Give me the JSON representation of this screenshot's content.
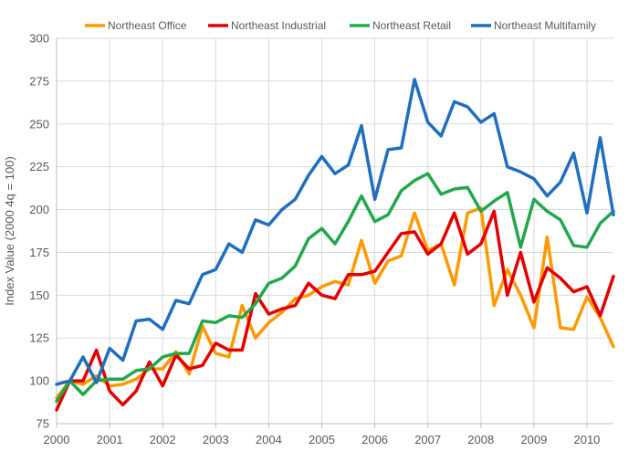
{
  "chart_data": {
    "type": "line",
    "title": "",
    "xlabel": "",
    "ylabel": "Index Value (2000 4q = 100)",
    "xlim": [
      2000,
      2010.5
    ],
    "ylim": [
      75,
      300
    ],
    "x_ticks": [
      "2000",
      "2001",
      "2002",
      "2003",
      "2004",
      "2005",
      "2006",
      "2007",
      "2008",
      "2009",
      "2010"
    ],
    "y_ticks": [
      75,
      100,
      125,
      150,
      175,
      200,
      225,
      250,
      275,
      300
    ],
    "grid": true,
    "legend_position": "top",
    "x": [
      2000.0,
      2000.25,
      2000.5,
      2000.75,
      2001.0,
      2001.25,
      2001.5,
      2001.75,
      2002.0,
      2002.25,
      2002.5,
      2002.75,
      2003.0,
      2003.25,
      2003.5,
      2003.75,
      2004.0,
      2004.25,
      2004.5,
      2004.75,
      2005.0,
      2005.25,
      2005.5,
      2005.75,
      2006.0,
      2006.25,
      2006.5,
      2006.75,
      2007.0,
      2007.25,
      2007.5,
      2007.75,
      2008.0,
      2008.25,
      2008.5,
      2008.75,
      2009.0,
      2009.25,
      2009.5,
      2009.75,
      2010.0,
      2010.25,
      2010.5
    ],
    "series": [
      {
        "name": "Northeast Office",
        "color": "#FF9900",
        "values": [
          90,
          100,
          98,
          103,
          97,
          98,
          101,
          107,
          107,
          117,
          104,
          132,
          116,
          114,
          144,
          125,
          134,
          140,
          148,
          150,
          155,
          158,
          156,
          182,
          157,
          170,
          173,
          198,
          176,
          180,
          156,
          198,
          201,
          144,
          165,
          150,
          131,
          184,
          131,
          130,
          149,
          137,
          120
        ]
      },
      {
        "name": "Northeast Industrial",
        "color": "#E50000",
        "values": [
          83,
          100,
          100,
          118,
          94,
          86,
          94,
          111,
          97,
          115,
          107,
          109,
          122,
          118,
          118,
          151,
          139,
          142,
          144,
          157,
          150,
          148,
          162,
          162,
          164,
          175,
          186,
          187,
          174,
          180,
          198,
          174,
          180,
          199,
          150,
          175,
          146,
          166,
          160,
          152,
          155,
          138,
          161
        ]
      },
      {
        "name": "Northeast Retail",
        "color": "#22A84A",
        "values": [
          88,
          100,
          92,
          100,
          101,
          101,
          106,
          107,
          114,
          116,
          116,
          135,
          134,
          138,
          137,
          145,
          157,
          160,
          167,
          183,
          189,
          180,
          193,
          208,
          193,
          197,
          211,
          217,
          221,
          209,
          212,
          213,
          199,
          205,
          210,
          178,
          206,
          199,
          194,
          179,
          178,
          192,
          199
        ]
      },
      {
        "name": "Northeast Multifamily",
        "color": "#1F6FBF",
        "values": [
          98,
          100,
          114,
          99,
          119,
          112,
          135,
          136,
          130,
          147,
          145,
          162,
          165,
          180,
          175,
          194,
          191,
          200,
          206,
          220,
          231,
          221,
          226,
          249,
          206,
          235,
          236,
          276,
          251,
          243,
          263,
          260,
          251,
          256,
          225,
          222,
          218,
          208,
          216,
          233,
          198,
          242,
          197
        ]
      }
    ]
  }
}
